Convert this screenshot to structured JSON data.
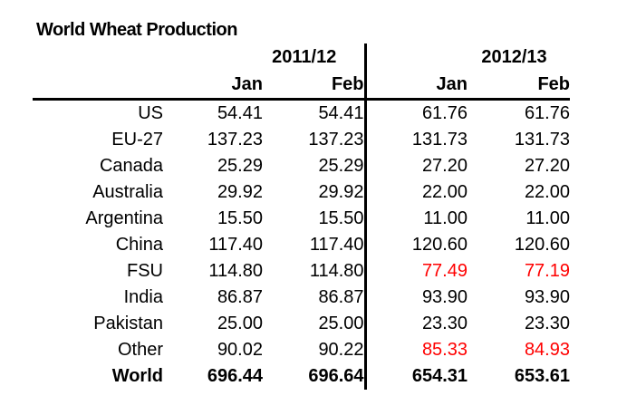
{
  "title": "World Wheat Production",
  "colors": {
    "text": "#000000",
    "highlight_red": "#ff0000"
  },
  "table": {
    "year_headers": [
      {
        "label": "2011/12"
      },
      {
        "label": "2012/13"
      }
    ],
    "month_headers": [
      "Jan",
      "Feb",
      "Jan",
      "Feb"
    ],
    "rows": [
      {
        "label": "US",
        "values": [
          "54.41",
          "54.41",
          "61.76",
          "61.76"
        ],
        "red_cols": [],
        "bold": false
      },
      {
        "label": "EU-27",
        "values": [
          "137.23",
          "137.23",
          "131.73",
          "131.73"
        ],
        "red_cols": [],
        "bold": false
      },
      {
        "label": "Canada",
        "values": [
          "25.29",
          "25.29",
          "27.20",
          "27.20"
        ],
        "red_cols": [],
        "bold": false
      },
      {
        "label": "Australia",
        "values": [
          "29.92",
          "29.92",
          "22.00",
          "22.00"
        ],
        "red_cols": [],
        "bold": false
      },
      {
        "label": "Argentina",
        "values": [
          "15.50",
          "15.50",
          "11.00",
          "11.00"
        ],
        "red_cols": [],
        "bold": false
      },
      {
        "label": "China",
        "values": [
          "117.40",
          "117.40",
          "120.60",
          "120.60"
        ],
        "red_cols": [],
        "bold": false
      },
      {
        "label": "FSU",
        "values": [
          "114.80",
          "114.80",
          "77.49",
          "77.19"
        ],
        "red_cols": [
          2,
          3
        ],
        "bold": false
      },
      {
        "label": "India",
        "values": [
          "86.87",
          "86.87",
          "93.90",
          "93.90"
        ],
        "red_cols": [],
        "bold": false
      },
      {
        "label": "Pakistan",
        "values": [
          "25.00",
          "25.00",
          "23.30",
          "23.30"
        ],
        "red_cols": [],
        "bold": false
      },
      {
        "label": "Other",
        "values": [
          "90.02",
          "90.22",
          "85.33",
          "84.93"
        ],
        "red_cols": [
          2,
          3
        ],
        "bold": false
      },
      {
        "label": "World",
        "values": [
          "696.44",
          "696.64",
          "654.31",
          "653.61"
        ],
        "red_cols": [],
        "bold": true
      }
    ]
  },
  "chart_data": {
    "type": "table",
    "title": "World Wheat Production",
    "column_groups": [
      "2011/12",
      "2012/13"
    ],
    "columns": [
      "2011/12 Jan",
      "2011/12 Feb",
      "2012/13 Jan",
      "2012/13 Feb"
    ],
    "row_labels": [
      "US",
      "EU-27",
      "Canada",
      "Australia",
      "Argentina",
      "China",
      "FSU",
      "India",
      "Pakistan",
      "Other",
      "World"
    ],
    "values": [
      [
        54.41,
        54.41,
        61.76,
        61.76
      ],
      [
        137.23,
        137.23,
        131.73,
        131.73
      ],
      [
        25.29,
        25.29,
        27.2,
        27.2
      ],
      [
        29.92,
        29.92,
        22.0,
        22.0
      ],
      [
        15.5,
        15.5,
        11.0,
        11.0
      ],
      [
        117.4,
        117.4,
        120.6,
        120.6
      ],
      [
        114.8,
        114.8,
        77.49,
        77.19
      ],
      [
        86.87,
        86.87,
        93.9,
        93.9
      ],
      [
        25.0,
        25.0,
        23.3,
        23.3
      ],
      [
        90.02,
        90.22,
        85.33,
        84.93
      ],
      [
        696.44,
        696.64,
        654.31,
        653.61
      ]
    ],
    "highlighted_red_cells": [
      {
        "row": "FSU",
        "columns": [
          "2012/13 Jan",
          "2012/13 Feb"
        ],
        "values": [
          77.49,
          77.19
        ]
      },
      {
        "row": "Other",
        "columns": [
          "2012/13 Jan",
          "2012/13 Feb"
        ],
        "values": [
          85.33,
          84.93
        ]
      }
    ],
    "notes": "Static data table; red values mark revised/highlighted 2012/13 figures. Vertical rule separates year groups; horizontal rule under month headers; World totals row is bold."
  }
}
